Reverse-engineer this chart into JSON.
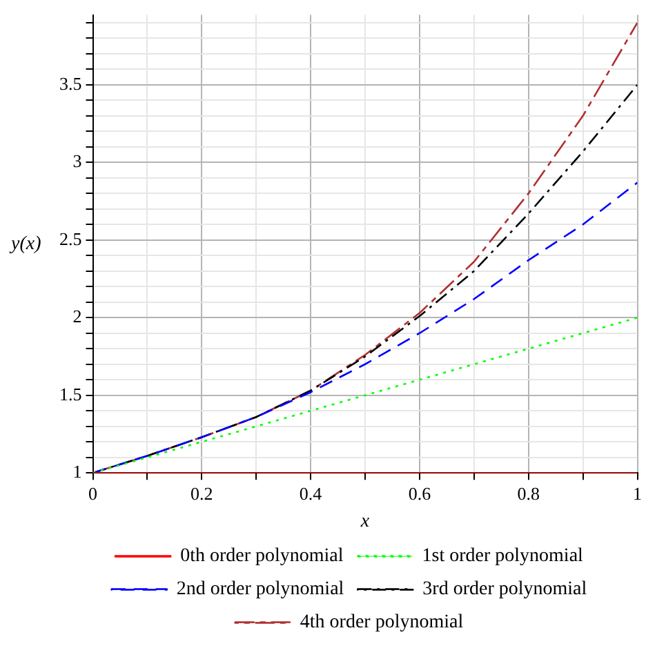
{
  "chart_data": {
    "type": "line",
    "xlabel": "x",
    "ylabel": "y(x)",
    "x": [
      0,
      0.1,
      0.2,
      0.3,
      0.4,
      0.5,
      0.6,
      0.7,
      0.8,
      0.9,
      1
    ],
    "series": [
      {
        "name": "0th order polynomial",
        "color": "#ff0000",
        "line_style": "solid",
        "values": [
          1,
          1,
          1,
          1,
          1,
          1,
          1,
          1,
          1,
          1,
          1
        ]
      },
      {
        "name": "1st order polynomial",
        "color": "#00ff00",
        "line_style": "dotted",
        "values": [
          1,
          1.1,
          1.2,
          1.3,
          1.4,
          1.5,
          1.6,
          1.7,
          1.8,
          1.9,
          2.0
        ]
      },
      {
        "name": "2nd order polynomial",
        "color": "#0000ff",
        "line_style": "dashed",
        "values": [
          1,
          1.11,
          1.23,
          1.36,
          1.52,
          1.7,
          1.9,
          2.12,
          2.37,
          2.6,
          2.87
        ]
      },
      {
        "name": "3rd order polynomial",
        "color": "#000000",
        "line_style": "dashdot",
        "values": [
          1,
          1.11,
          1.23,
          1.36,
          1.53,
          1.75,
          2.01,
          2.3,
          2.67,
          3.07,
          3.5
        ]
      },
      {
        "name": "4th order polynomial",
        "color": "#b03030",
        "line_style": "longdash",
        "values": [
          1,
          1.11,
          1.23,
          1.36,
          1.53,
          1.76,
          2.03,
          2.36,
          2.8,
          3.3,
          3.9
        ]
      }
    ],
    "xlim": [
      0,
      1
    ],
    "xticks": [
      0,
      {
        "value": 0.1,
        "label": null
      },
      0.2,
      {
        "value": 0.3,
        "label": null
      },
      0.4,
      {
        "value": 0.5,
        "label": null
      },
      0.6,
      {
        "value": 0.7,
        "label": null
      },
      0.8,
      {
        "value": 0.9,
        "label": null
      },
      1
    ],
    "ylim": [
      1,
      3.95
    ],
    "yticks": [
      1,
      {
        "value": 1.1,
        "label": null
      },
      {
        "value": 1.2,
        "label": null
      },
      {
        "value": 1.3,
        "label": null
      },
      {
        "value": 1.4,
        "label": null
      },
      1.5,
      {
        "value": 1.6,
        "label": null
      },
      {
        "value": 1.7,
        "label": null
      },
      {
        "value": 1.8,
        "label": null
      },
      {
        "value": 1.9,
        "label": null
      },
      2,
      {
        "value": 2.1,
        "label": null
      },
      {
        "value": 2.2,
        "label": null
      },
      {
        "value": 2.3,
        "label": null
      },
      {
        "value": 2.4,
        "label": null
      },
      2.5,
      {
        "value": 2.6,
        "label": null
      },
      {
        "value": 2.7,
        "label": null
      },
      {
        "value": 2.8,
        "label": null
      },
      {
        "value": 2.9,
        "label": null
      },
      3,
      {
        "value": 3.1,
        "label": null
      },
      {
        "value": 3.2,
        "label": null
      },
      {
        "value": 3.3,
        "label": null
      },
      {
        "value": 3.4,
        "label": null
      },
      3.5,
      {
        "value": 3.6,
        "label": null
      },
      {
        "value": 3.7,
        "label": null
      },
      {
        "value": 3.8,
        "label": null
      },
      {
        "value": 3.9,
        "label": null
      }
    ],
    "grid": true,
    "legend": "bottom",
    "marker": "none"
  }
}
